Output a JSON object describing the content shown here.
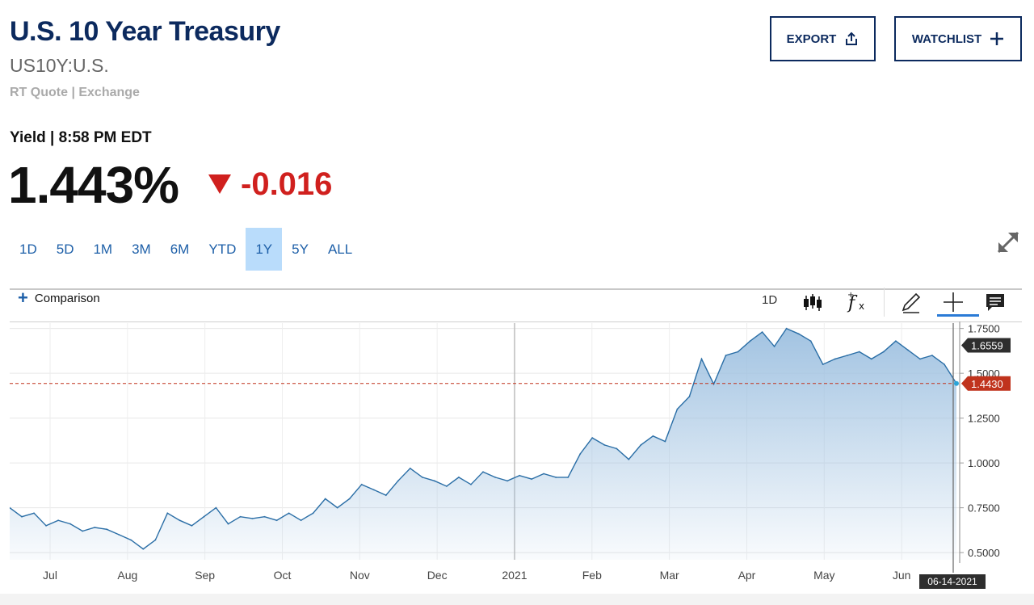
{
  "header": {
    "title": "U.S. 10 Year Treasury",
    "symbol": "US10Y:U.S.",
    "quote_source": "RT Quote | Exchange"
  },
  "actions": {
    "export_label": "EXPORT",
    "watchlist_label": "WATCHLIST"
  },
  "quote": {
    "yield_label": "Yield | 8:58 PM EDT",
    "price": "1.443%",
    "change": "-0.016",
    "change_color": "#d0201e"
  },
  "ranges": [
    "1D",
    "5D",
    "1M",
    "3M",
    "6M",
    "YTD",
    "1Y",
    "5Y",
    "ALL"
  ],
  "active_range": "1Y",
  "toolbar": {
    "comparison_label": "Comparison",
    "interval": "1D",
    "icons": [
      "candlestick-icon",
      "function-icon",
      "pencil-icon",
      "crosshair-icon",
      "comment-icon"
    ]
  },
  "chart_data": {
    "type": "area",
    "series": [
      {
        "values": [
          0.75,
          0.7,
          0.72,
          0.65,
          0.68,
          0.66,
          0.62,
          0.64,
          0.63,
          0.6,
          0.57,
          0.52,
          0.57,
          0.72,
          0.68,
          0.65,
          0.7,
          0.75,
          0.66,
          0.7,
          0.69,
          0.7,
          0.68,
          0.72,
          0.68,
          0.72,
          0.8,
          0.75,
          0.8,
          0.88,
          0.85,
          0.82,
          0.9,
          0.97,
          0.92,
          0.9,
          0.87,
          0.92,
          0.88,
          0.95,
          0.92,
          0.9,
          0.93,
          0.91,
          0.94,
          0.92,
          0.92,
          1.05,
          1.14,
          1.1,
          1.08,
          1.02,
          1.1,
          1.15,
          1.12,
          1.3,
          1.37,
          1.58,
          1.44,
          1.6,
          1.62,
          1.68,
          1.73,
          1.65,
          1.75,
          1.72,
          1.68,
          1.55,
          1.58,
          1.6,
          1.62,
          1.58,
          1.62,
          1.68,
          1.63,
          1.58,
          1.6,
          1.55,
          1.443
        ]
      }
    ],
    "x_labels": [
      "Jul",
      "Aug",
      "Sep",
      "Oct",
      "Nov",
      "Dec",
      "2021",
      "Feb",
      "Mar",
      "Apr",
      "May",
      "Jun"
    ],
    "y_ticks": [
      "1.7500",
      "1.5000",
      "1.2500",
      "1.0000",
      "0.7500",
      "0.5000"
    ],
    "ylim": [
      0.46,
      1.78
    ],
    "grid": true,
    "reference_line": 1.443,
    "markers": [
      {
        "label": "1.6559",
        "value": 1.6559,
        "color": "#2e2e2e"
      },
      {
        "label": "1.4430",
        "value": 1.443,
        "color": "#c0331d"
      }
    ],
    "cursor_date": "06-14-2021",
    "line_color": "#2a6ea6",
    "fill_color": "#9dc0e0",
    "year_divider_label": "2021"
  }
}
